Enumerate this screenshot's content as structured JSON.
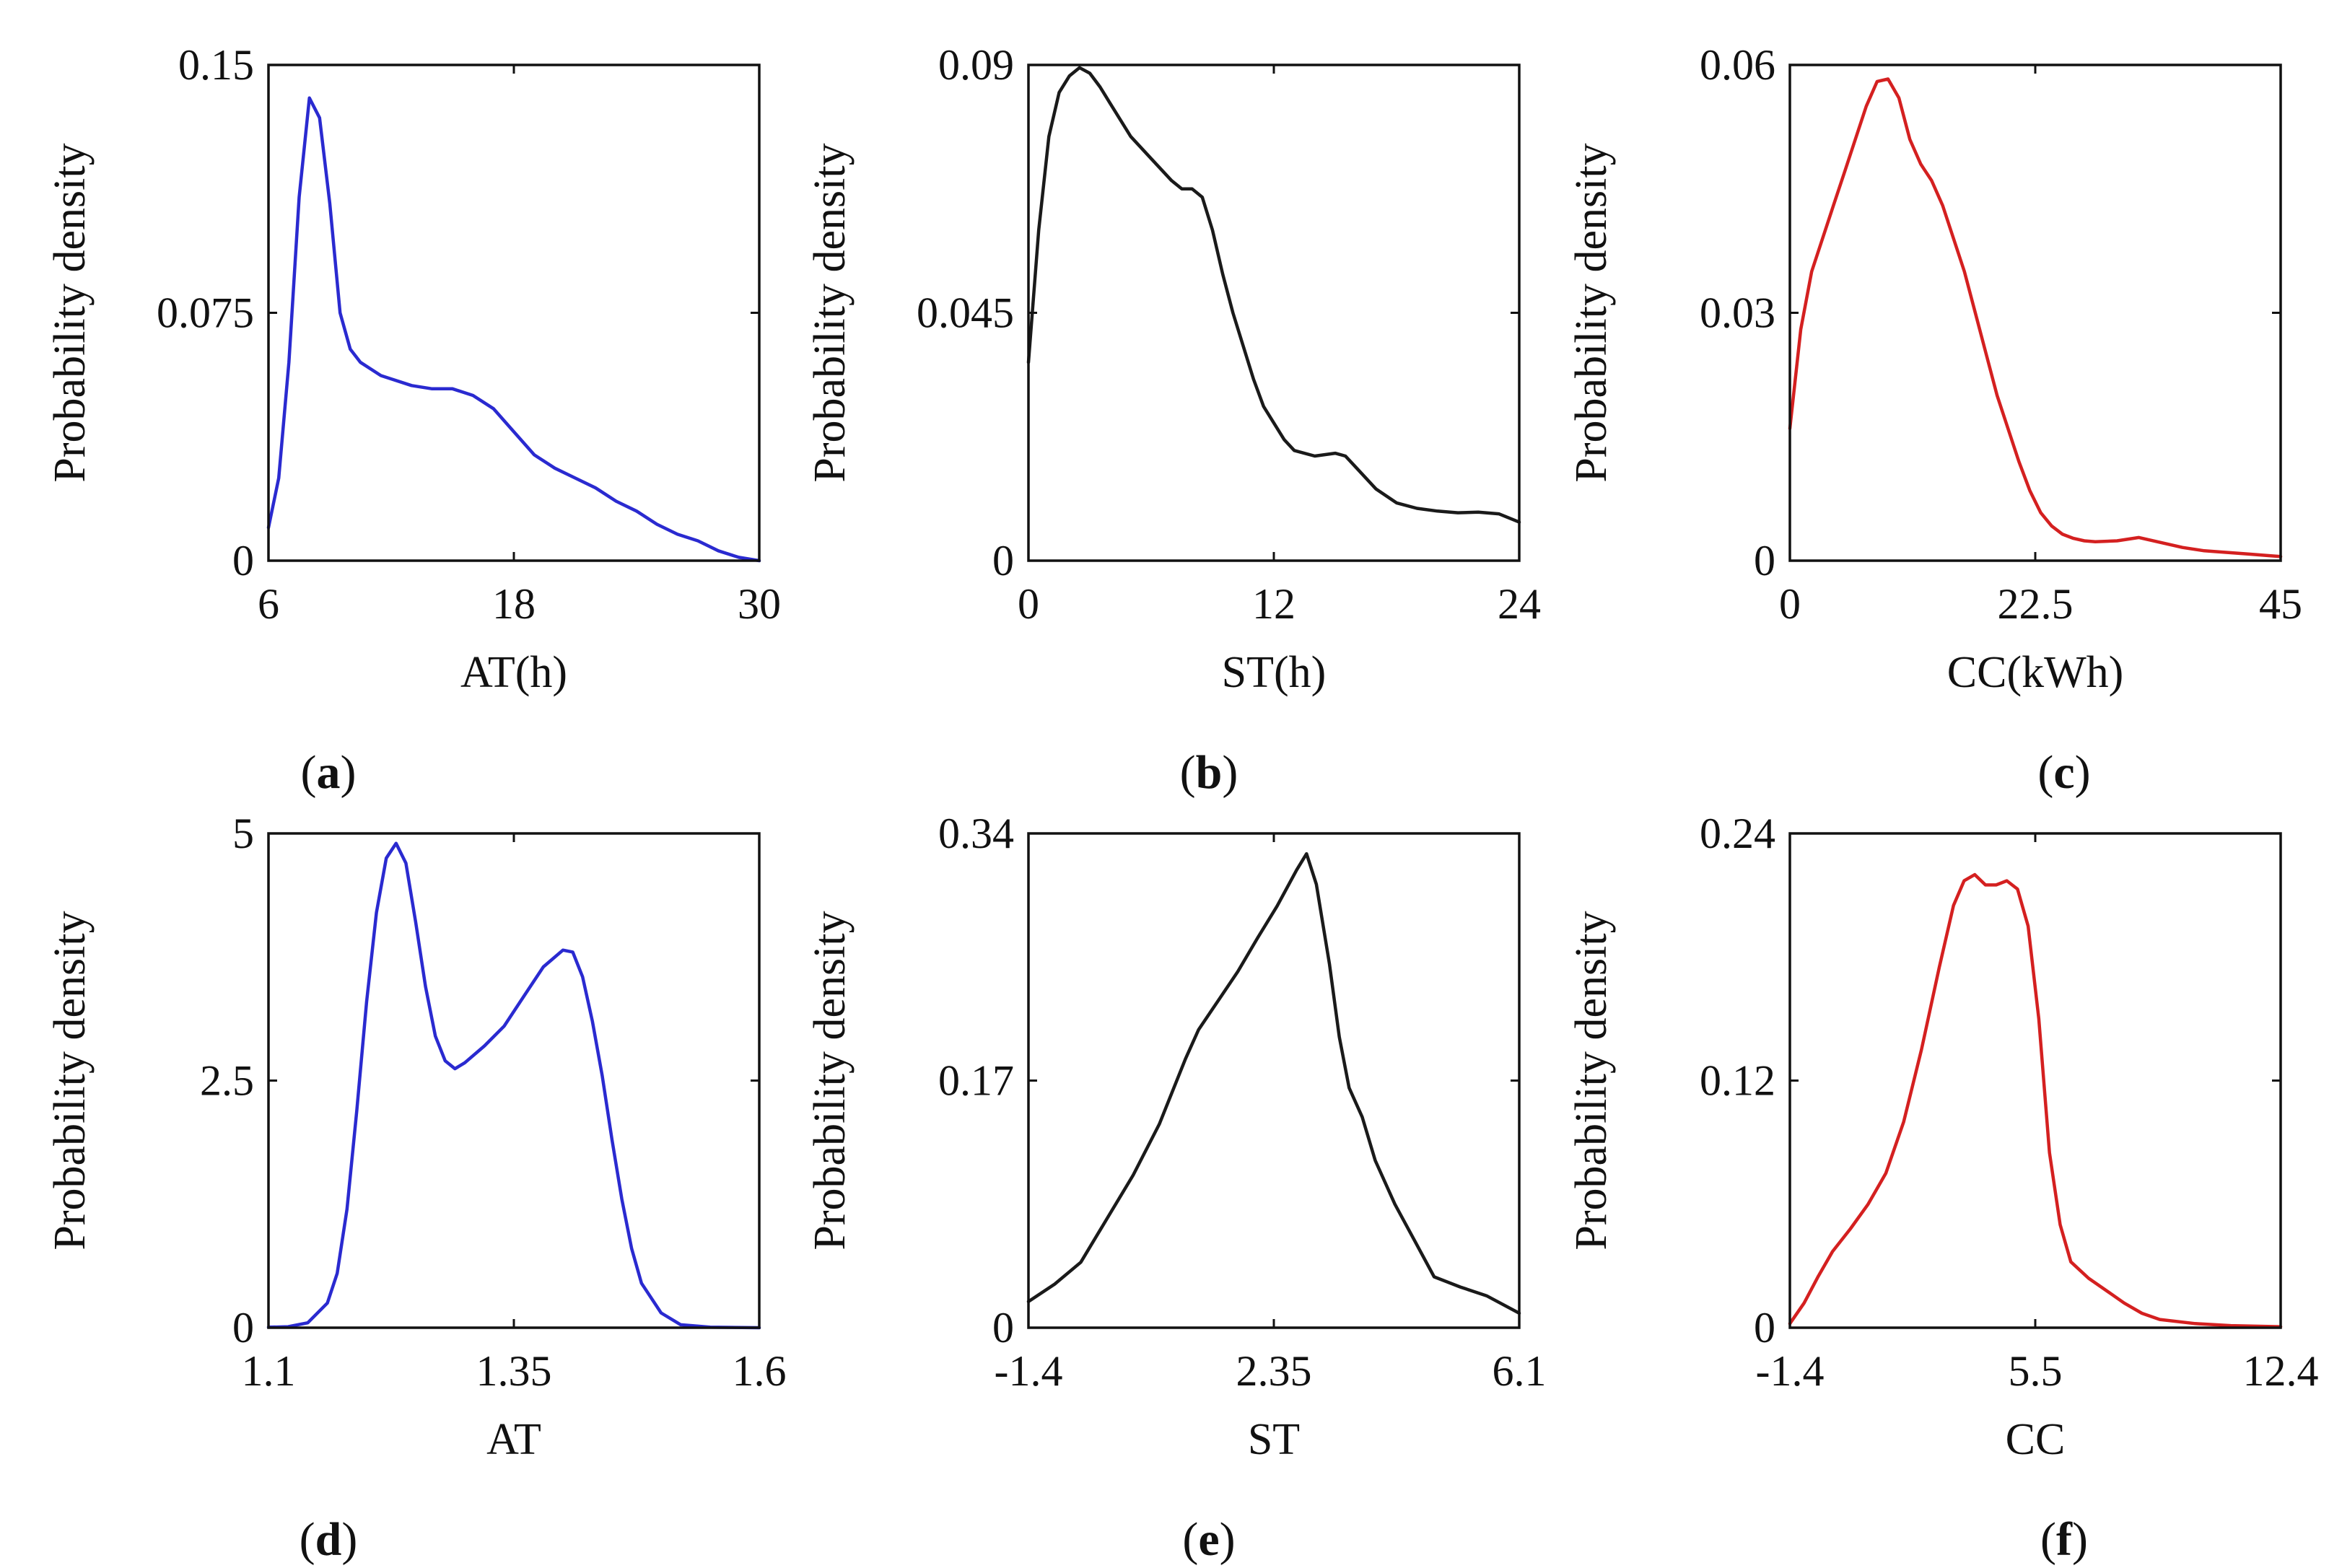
{
  "figure": {
    "panel_count": 6
  },
  "chart_data": [
    {
      "type": "line",
      "id": "a",
      "panel_label": "a",
      "xlabel": "AT(h)",
      "ylabel": "Probability density",
      "xlim": [
        6,
        30
      ],
      "ylim": [
        0,
        0.15
      ],
      "xticks": [
        6,
        18,
        30
      ],
      "yticks": [
        0,
        0.075,
        0.15
      ],
      "xtick_labels": [
        "6",
        "18",
        "30"
      ],
      "ytick_labels": [
        "0",
        "0.075",
        "0.15"
      ],
      "color": "#2a2ad0",
      "series": [
        {
          "name": "AT(h)",
          "x": [
            6,
            6.5,
            7,
            7.5,
            8,
            8.5,
            9,
            9.5,
            10,
            10.5,
            11,
            11.5,
            12,
            13,
            14,
            15,
            16,
            17,
            18,
            19,
            20,
            21,
            22,
            23,
            24,
            25,
            26,
            27,
            28,
            29,
            30
          ],
          "y": [
            0.01,
            0.025,
            0.06,
            0.11,
            0.14,
            0.134,
            0.108,
            0.075,
            0.064,
            0.06,
            0.058,
            0.056,
            0.055,
            0.053,
            0.052,
            0.052,
            0.05,
            0.046,
            0.039,
            0.032,
            0.028,
            0.025,
            0.022,
            0.018,
            0.015,
            0.011,
            0.008,
            0.006,
            0.003,
            0.001,
            0
          ]
        }
      ]
    },
    {
      "type": "line",
      "id": "b",
      "panel_label": "b",
      "xlabel": "ST(h)",
      "ylabel": "Probability density",
      "xlim": [
        0,
        24
      ],
      "ylim": [
        0,
        0.09
      ],
      "xticks": [
        0,
        12,
        24
      ],
      "yticks": [
        0,
        0.045,
        0.09
      ],
      "xtick_labels": [
        "0",
        "12",
        "24"
      ],
      "ytick_labels": [
        "0",
        "0.045",
        "0.09"
      ],
      "color": "#1a1a1a",
      "series": [
        {
          "name": "ST(h)",
          "x": [
            0,
            0.5,
            1,
            1.5,
            2,
            2.5,
            3,
            3.5,
            4,
            5,
            6,
            7,
            7.5,
            8,
            8.5,
            9,
            9.5,
            10,
            10.5,
            11,
            11.5,
            12,
            12.5,
            13,
            14,
            15,
            15.5,
            16,
            17,
            18,
            19,
            20,
            21,
            22,
            23,
            24
          ],
          "y": [
            0.036,
            0.06,
            0.077,
            0.085,
            0.088,
            0.0895,
            0.0885,
            0.086,
            0.083,
            0.077,
            0.073,
            0.069,
            0.0675,
            0.0675,
            0.066,
            0.06,
            0.052,
            0.045,
            0.039,
            0.033,
            0.028,
            0.025,
            0.022,
            0.02,
            0.019,
            0.0195,
            0.019,
            0.017,
            0.013,
            0.0105,
            0.0095,
            0.009,
            0.0087,
            0.0088,
            0.0085,
            0.007
          ]
        }
      ]
    },
    {
      "type": "line",
      "id": "c",
      "panel_label": "c",
      "xlabel": "CC(kWh)",
      "ylabel": "Probability density",
      "xlim": [
        0,
        45
      ],
      "ylim": [
        0,
        0.06
      ],
      "xticks": [
        0,
        22.5,
        45
      ],
      "yticks": [
        0,
        0.03,
        0.06
      ],
      "xtick_labels": [
        "0",
        "22.5",
        "45"
      ],
      "ytick_labels": [
        "0",
        "0.03",
        "0.06"
      ],
      "color": "#d42020",
      "series": [
        {
          "name": "CC(kWh)",
          "x": [
            0,
            1,
            2,
            3,
            4,
            5,
            6,
            7,
            8,
            9,
            10,
            11,
            12,
            13,
            14,
            15,
            16,
            17,
            18,
            19,
            20,
            21,
            22,
            23,
            24,
            25,
            26,
            27,
            28,
            30,
            32,
            34,
            36,
            38,
            40,
            42,
            44,
            45
          ],
          "y": [
            0.016,
            0.028,
            0.035,
            0.039,
            0.043,
            0.047,
            0.051,
            0.055,
            0.058,
            0.0583,
            0.056,
            0.051,
            0.048,
            0.046,
            0.043,
            0.039,
            0.035,
            0.03,
            0.025,
            0.02,
            0.016,
            0.012,
            0.0085,
            0.0058,
            0.0042,
            0.0032,
            0.0027,
            0.0024,
            0.0023,
            0.0024,
            0.0028,
            0.0022,
            0.0016,
            0.0012,
            0.001,
            0.0008,
            0.0006,
            0.0005
          ]
        }
      ]
    },
    {
      "type": "line",
      "id": "d",
      "panel_label": "d",
      "xlabel": "AT",
      "ylabel": "Probability density",
      "xlim": [
        1.1,
        1.6
      ],
      "ylim": [
        0,
        5
      ],
      "xticks": [
        1.1,
        1.35,
        1.6
      ],
      "yticks": [
        0,
        2.5,
        5
      ],
      "xtick_labels": [
        "1.1",
        "1.35",
        "1.6"
      ],
      "ytick_labels": [
        "0",
        "2.5",
        "5"
      ],
      "color": "#2a2ad0",
      "series": [
        {
          "name": "AT",
          "x": [
            1.1,
            1.12,
            1.14,
            1.16,
            1.17,
            1.18,
            1.19,
            1.2,
            1.21,
            1.22,
            1.23,
            1.24,
            1.25,
            1.26,
            1.27,
            1.28,
            1.29,
            1.3,
            1.32,
            1.34,
            1.36,
            1.38,
            1.4,
            1.41,
            1.42,
            1.43,
            1.44,
            1.45,
            1.46,
            1.47,
            1.48,
            1.5,
            1.52,
            1.55,
            1.6
          ],
          "y": [
            0.005,
            0.01,
            0.05,
            0.25,
            0.55,
            1.2,
            2.2,
            3.3,
            4.2,
            4.75,
            4.9,
            4.7,
            4.1,
            3.45,
            2.95,
            2.7,
            2.62,
            2.68,
            2.85,
            3.05,
            3.35,
            3.65,
            3.82,
            3.8,
            3.55,
            3.1,
            2.55,
            1.9,
            1.3,
            0.8,
            0.45,
            0.15,
            0.03,
            0.005,
            0
          ]
        }
      ]
    },
    {
      "type": "line",
      "id": "e",
      "panel_label": "e",
      "xlabel": "ST",
      "ylabel": "Probability density",
      "xlim": [
        -1.4,
        6.1
      ],
      "ylim": [
        0,
        0.34
      ],
      "xticks": [
        -1.4,
        2.35,
        6.1
      ],
      "yticks": [
        0,
        0.17,
        0.34
      ],
      "xtick_labels": [
        "-1.4",
        "2.35",
        "6.1"
      ],
      "ytick_labels": [
        "0",
        "0.17",
        "0.34"
      ],
      "color": "#1a1a1a",
      "series": [
        {
          "name": "ST",
          "x": [
            -1.4,
            -1.0,
            -0.6,
            -0.2,
            0.2,
            0.6,
            1.0,
            1.2,
            1.5,
            1.8,
            2.1,
            2.4,
            2.7,
            2.85,
            3.0,
            3.2,
            3.35,
            3.5,
            3.7,
            3.9,
            4.2,
            4.5,
            4.8,
            5.2,
            5.6,
            6.1
          ],
          "y": [
            0.018,
            0.03,
            0.045,
            0.075,
            0.105,
            0.14,
            0.185,
            0.205,
            0.225,
            0.245,
            0.268,
            0.29,
            0.315,
            0.326,
            0.305,
            0.25,
            0.2,
            0.165,
            0.145,
            0.115,
            0.085,
            0.06,
            0.035,
            0.028,
            0.022,
            0.01
          ]
        }
      ]
    },
    {
      "type": "line",
      "id": "f",
      "panel_label": "f",
      "xlabel": "CC",
      "ylabel": "Probability density",
      "xlim": [
        -1.4,
        12.4
      ],
      "ylim": [
        0,
        0.24
      ],
      "xticks": [
        -1.4,
        5.5,
        12.4
      ],
      "yticks": [
        0,
        0.12,
        0.24
      ],
      "xtick_labels": [
        "-1.4",
        "5.5",
        "12.4"
      ],
      "ytick_labels": [
        "0",
        "0.12",
        "0.24"
      ],
      "color": "#d42020",
      "series": [
        {
          "name": "CC",
          "x": [
            -1.4,
            -1.0,
            -0.6,
            -0.2,
            0.3,
            0.8,
            1.3,
            1.8,
            2.3,
            2.8,
            3.2,
            3.5,
            3.8,
            4.1,
            4.4,
            4.7,
            5.0,
            5.3,
            5.6,
            5.9,
            6.2,
            6.5,
            7.0,
            7.5,
            8.0,
            8.5,
            9.0,
            10.0,
            11.0,
            12.4
          ],
          "y": [
            0.002,
            0.012,
            0.025,
            0.037,
            0.048,
            0.06,
            0.075,
            0.1,
            0.135,
            0.175,
            0.205,
            0.217,
            0.22,
            0.215,
            0.215,
            0.217,
            0.213,
            0.195,
            0.15,
            0.085,
            0.05,
            0.032,
            0.024,
            0.018,
            0.012,
            0.007,
            0.004,
            0.002,
            0.001,
            0.0005
          ]
        }
      ]
    }
  ]
}
